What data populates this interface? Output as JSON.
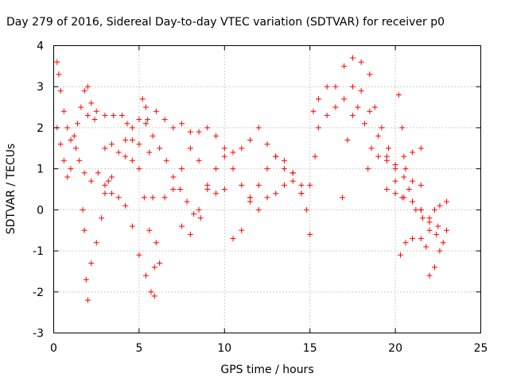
{
  "chart_data": {
    "type": "scatter",
    "title": "Day 279 of 2016, Sidereal Day-to-day VTEC variation (SDTVAR) for receiver p0",
    "xlabel": "GPS time / hours",
    "ylabel": "SDTVAR / TECUs",
    "xlim": [
      0,
      25
    ],
    "ylim": [
      -3,
      4
    ],
    "xticks": [
      "0",
      "5",
      "10",
      "15",
      "20",
      "25"
    ],
    "yticks": [
      "-3",
      "-2",
      "-1",
      "0",
      "1",
      "2",
      "3",
      "4"
    ],
    "grid": true,
    "marker": "+",
    "color": "#ff0000",
    "series": [
      {
        "x": [
          0.2,
          0.3,
          0.4,
          0.6,
          0.8,
          1.0,
          1.3,
          1.5,
          1.8
        ],
        "y": [
          3.6,
          3.3,
          2.9,
          2.4,
          2.0,
          1.7,
          1.5,
          1.2,
          0.9
        ]
      },
      {
        "x": [
          0.2,
          0.4,
          0.6,
          0.8,
          1.0,
          1.2,
          1.4,
          1.6,
          1.8,
          2.0,
          2.2,
          2.4
        ],
        "y": [
          2.0,
          1.6,
          1.2,
          0.8,
          1.0,
          1.8,
          2.1,
          2.5,
          2.9,
          3.0,
          2.6,
          2.2
        ]
      },
      {
        "x": [
          1.7,
          1.8,
          1.9,
          2.0,
          2.2,
          2.5,
          2.8,
          3.0,
          3.2,
          3.4
        ],
        "y": [
          0.0,
          -0.5,
          -1.7,
          -2.2,
          -1.3,
          -0.8,
          -0.2,
          0.4,
          0.7,
          0.8
        ]
      },
      {
        "x": [
          2.0,
          2.5,
          3.0,
          3.5,
          4.0,
          4.3,
          4.6,
          5.0,
          5.3,
          5.6,
          5.9
        ],
        "y": [
          2.3,
          2.4,
          2.3,
          2.3,
          2.3,
          2.1,
          1.7,
          1.0,
          0.3,
          -0.5,
          -1.4
        ]
      },
      {
        "x": [
          2.2,
          2.6,
          3.0,
          3.4,
          3.8,
          4.2,
          4.6,
          5.0,
          5.4,
          5.7,
          5.9
        ],
        "y": [
          0.7,
          0.9,
          0.6,
          0.4,
          0.3,
          0.1,
          -0.4,
          -1.1,
          -1.6,
          -2.0,
          -2.1
        ]
      },
      {
        "x": [
          3.0,
          3.4,
          3.8,
          4.2,
          4.6,
          5.0,
          5.2,
          5.4,
          5.6,
          5.8,
          6.0,
          6.2
        ],
        "y": [
          1.5,
          1.6,
          1.4,
          1.3,
          1.2,
          1.6,
          2.7,
          2.5,
          1.4,
          0.3,
          -0.8,
          -1.3
        ]
      },
      {
        "x": [
          4.2,
          4.6,
          5.0,
          5.4,
          5.8,
          6.2,
          6.6,
          7.0,
          7.4,
          7.8,
          8.2,
          8.6
        ],
        "y": [
          1.7,
          2.0,
          2.2,
          2.1,
          1.8,
          1.5,
          1.2,
          0.8,
          0.5,
          0.2,
          -0.1,
          -0.2
        ]
      },
      {
        "x": [
          5.5,
          6.0,
          6.5,
          7.0,
          7.5,
          8.0,
          8.5,
          9.0,
          9.5,
          10.0
        ],
        "y": [
          2.2,
          2.4,
          2.2,
          2.0,
          2.1,
          1.9,
          1.2,
          0.6,
          0.4,
          0.5
        ]
      },
      {
        "x": [
          6.5,
          7.0,
          7.5,
          8.0,
          8.5,
          9.0,
          9.5,
          10.0,
          10.5,
          11.0,
          11.5
        ],
        "y": [
          0.3,
          0.5,
          1.0,
          1.5,
          1.9,
          2.0,
          1.8,
          1.5,
          1.0,
          0.6,
          0.3
        ]
      },
      {
        "x": [
          7.5,
          8.0,
          8.5,
          9.0,
          9.5,
          10.0,
          10.5,
          11.0,
          11.5,
          12.0
        ],
        "y": [
          -0.4,
          -0.6,
          0.0,
          0.5,
          1.0,
          1.3,
          1.4,
          1.5,
          1.7,
          2.0
        ]
      },
      {
        "x": [
          10.5,
          11.0,
          11.5,
          12.0,
          12.5,
          13.0,
          13.5,
          14.0,
          14.5,
          15.0
        ],
        "y": [
          -0.7,
          -0.5,
          0.2,
          0.6,
          1.0,
          1.3,
          1.2,
          0.9,
          0.4,
          -0.6
        ]
      },
      {
        "x": [
          11.5,
          12.0,
          12.5,
          13.0,
          13.5,
          14.0,
          14.5,
          14.8
        ],
        "y": [
          0.3,
          0.0,
          0.3,
          0.4,
          0.6,
          0.9,
          0.6,
          0.0
        ]
      },
      {
        "x": [
          12.5,
          13.0,
          13.5,
          14.0,
          14.5,
          15.0,
          15.3
        ],
        "y": [
          1.6,
          1.3,
          1.0,
          0.7,
          0.4,
          0.6,
          1.3
        ]
      },
      {
        "x": [
          15.2,
          15.5,
          16.0,
          16.5,
          17.0,
          17.5,
          18.0,
          18.5
        ],
        "y": [
          2.4,
          2.7,
          3.0,
          3.0,
          3.5,
          3.7,
          3.6,
          3.3
        ]
      },
      {
        "x": [
          15.5,
          16.0,
          16.5,
          17.0,
          17.5,
          18.0,
          18.5,
          19.0,
          19.5,
          20.0,
          20.5,
          21.0,
          21.5
        ],
        "y": [
          2.0,
          2.3,
          2.5,
          2.7,
          3.0,
          2.9,
          2.4,
          1.8,
          1.3,
          1.0,
          0.8,
          0.7,
          0.6
        ]
      },
      {
        "x": [
          16.9,
          17.2,
          17.5,
          17.8,
          18.2,
          18.6,
          19.0,
          19.5,
          20.0,
          20.5,
          21.0,
          21.5
        ],
        "y": [
          0.3,
          1.7,
          2.3,
          2.5,
          2.1,
          1.5,
          1.3,
          1.2,
          1.1,
          1.3,
          1.4,
          1.5
        ]
      },
      {
        "x": [
          18.4,
          18.8,
          19.2,
          19.6,
          20.0,
          20.4,
          20.8,
          21.2,
          21.6,
          22.0,
          22.4,
          22.8
        ],
        "y": [
          1.0,
          2.5,
          2.0,
          1.5,
          0.7,
          0.3,
          0.5,
          0.0,
          -0.2,
          -0.5,
          -0.6,
          -0.8
        ]
      },
      {
        "x": [
          19.5,
          20.0,
          20.5,
          21.0,
          21.5,
          22.0,
          22.5,
          23.0
        ],
        "y": [
          0.5,
          0.4,
          0.3,
          0.2,
          0.0,
          -0.3,
          -0.4,
          -0.5
        ]
      },
      {
        "x": [
          20.2,
          20.4,
          20.6,
          21.0,
          21.5,
          22.0,
          22.3,
          22.6,
          23.0
        ],
        "y": [
          2.8,
          2.0,
          1.0,
          0.2,
          0.0,
          -0.2,
          0.0,
          0.1,
          0.2
        ]
      },
      {
        "x": [
          20.3,
          20.6,
          21.0,
          21.5,
          21.8,
          22.0,
          22.3,
          22.6
        ],
        "y": [
          -1.1,
          -0.8,
          -0.7,
          -0.7,
          -0.9,
          -1.6,
          -1.4,
          -1.0
        ]
      }
    ]
  }
}
